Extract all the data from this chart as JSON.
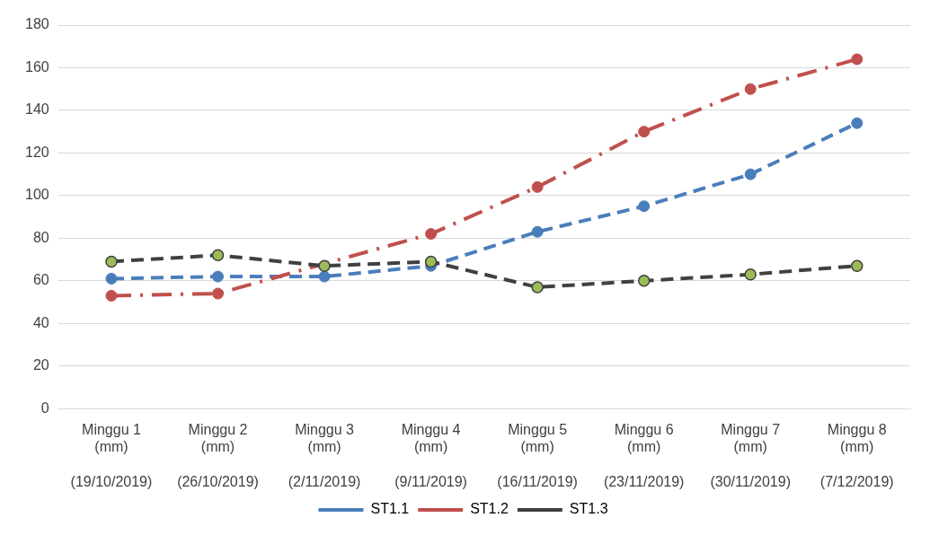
{
  "chart_data": {
    "type": "line",
    "categories": [
      "Minggu 1\n(mm)\n\n(19/10/2019)",
      "Minggu 2\n(mm)\n\n(26/10/2019)",
      "Minggu 3\n(mm)\n\n(2/11/2019)",
      "Minggu 4\n(mm)\n\n(9/11/2019)",
      "Minggu 5\n(mm)\n\n(16/11/2019)",
      "Minggu 6\n(mm)\n\n(23/11/2019)",
      "Minggu 7\n(mm)\n\n(30/11/2019)",
      "Minggu 8\n(mm)\n\n(7/12/2019)"
    ],
    "series": [
      {
        "name": "ST1.1",
        "color": "#4a7ebb",
        "line_style": "dashed",
        "values": [
          61,
          62,
          62,
          67,
          83,
          95,
          110,
          134
        ]
      },
      {
        "name": "ST1.2",
        "color": "#c0504d",
        "line_style": "dashdot",
        "values": [
          53,
          54,
          null,
          82,
          104,
          130,
          150,
          164
        ]
      },
      {
        "name": "ST1.3",
        "color": "#404040",
        "colors": [
          "#9bbb59",
          "#9bbb59",
          "#9bbb59",
          "#9bbb59",
          "#9bbb59",
          "#9bbb59",
          "#9bbb59",
          "#9bbb59"
        ],
        "line_style": "dashed",
        "values": [
          69,
          72,
          67,
          69,
          57,
          60,
          63,
          67
        ]
      }
    ],
    "ylim": [
      0,
      180
    ],
    "yticks": [
      0,
      20,
      40,
      60,
      80,
      100,
      120,
      140,
      160,
      180
    ],
    "grid": "y",
    "legend": "bottom",
    "marker": "circle"
  }
}
